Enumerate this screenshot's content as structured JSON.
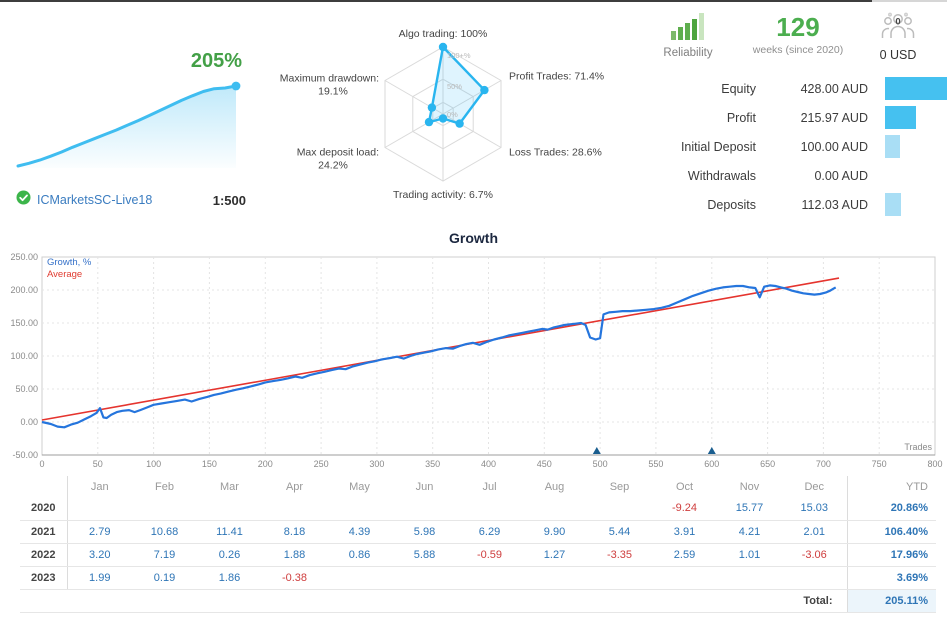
{
  "account": {
    "growth_percent": "205%",
    "broker": "ICMarketsSC-Live18",
    "leverage": "1:500"
  },
  "reliability": {
    "label": "Reliability",
    "weeks_value": "129",
    "weeks_caption": "weeks (since 2020)",
    "members_count": "0",
    "members_funds": "0 USD"
  },
  "stats": {
    "max": 428,
    "bar_colors": {
      "strong": "#45c1f0",
      "light": "#a9def5"
    },
    "rows": [
      {
        "label": "Equity",
        "value": "428.00 AUD",
        "amount": 428,
        "tone": "strong"
      },
      {
        "label": "Profit",
        "value": "215.97 AUD",
        "amount": 215.97,
        "tone": "strong"
      },
      {
        "label": "Initial Deposit",
        "value": "100.00 AUD",
        "amount": 100,
        "tone": "light"
      },
      {
        "label": "Withdrawals",
        "value": "0.00 AUD",
        "amount": 0,
        "tone": "light"
      },
      {
        "label": "Deposits",
        "value": "112.03 AUD",
        "amount": 112.03,
        "tone": "light"
      }
    ]
  },
  "chart_data": [
    {
      "name": "account-growth-sparkline",
      "type": "area",
      "max": 205,
      "final_label": "205%",
      "line_color": "#3fbdf0",
      "values": [
        0,
        7,
        15,
        25,
        36,
        48,
        59,
        70,
        81,
        92,
        104,
        116,
        129,
        142,
        155,
        168,
        180,
        191,
        198,
        200,
        205
      ]
    },
    {
      "name": "metrics-radar",
      "type": "radar",
      "categories": [
        "Algo trading",
        "Profit Trades",
        "Loss Trades",
        "Trading activity",
        "Max deposit load",
        "Maximum drawdown"
      ],
      "values": [
        100,
        71.4,
        28.6,
        6.7,
        24.2,
        19.1
      ],
      "label_lines": [
        [
          "Algo trading: 100%"
        ],
        [
          "Profit Trades: 71.4%"
        ],
        [
          "Loss Trades: 28.6%"
        ],
        [
          "Trading activity: 6.7%"
        ],
        [
          "Max deposit load:",
          "24.2%"
        ],
        [
          "Maximum drawdown:",
          "19.1%"
        ]
      ],
      "ring_labels": [
        "100+%",
        "50%",
        "0%"
      ],
      "stroke": "#29b5ef",
      "fill": "rgba(41,182,246,0.15)"
    },
    {
      "name": "growth-chart",
      "type": "line",
      "title": "Growth",
      "xlabel": "Trades",
      "xlim": [
        0,
        800
      ],
      "ylim": [
        -50,
        250
      ],
      "yticks": [
        "250.00",
        "200.00",
        "150.00",
        "100.00",
        "50.00",
        "0.00",
        "-50.00"
      ],
      "xticks": [
        0,
        50,
        100,
        150,
        200,
        250,
        300,
        350,
        400,
        450,
        500,
        550,
        600,
        650,
        700,
        750,
        800
      ],
      "deposit_markers": [
        497,
        600
      ],
      "series": [
        {
          "name": "Average",
          "color": "#e5342e",
          "width": 1.6,
          "points": [
            [
              0,
              3
            ],
            [
              714,
              218
            ]
          ]
        },
        {
          "name": "Growth, %",
          "color": "#2575dd",
          "width": 2.2,
          "points": [
            [
              0,
              0
            ],
            [
              8,
              -3
            ],
            [
              14,
              -7
            ],
            [
              20,
              -8
            ],
            [
              26,
              -4
            ],
            [
              32,
              -1
            ],
            [
              38,
              4
            ],
            [
              44,
              9
            ],
            [
              49,
              14
            ],
            [
              52,
              21
            ],
            [
              55,
              7
            ],
            [
              58,
              6
            ],
            [
              62,
              11
            ],
            [
              67,
              15
            ],
            [
              72,
              17
            ],
            [
              78,
              18
            ],
            [
              83,
              15
            ],
            [
              88,
              18
            ],
            [
              94,
              22
            ],
            [
              100,
              26
            ],
            [
              107,
              28
            ],
            [
              114,
              30
            ],
            [
              121,
              32
            ],
            [
              128,
              34
            ],
            [
              134,
              31
            ],
            [
              141,
              35
            ],
            [
              148,
              38
            ],
            [
              154,
              41
            ],
            [
              160,
              43
            ],
            [
              167,
              46
            ],
            [
              174,
              49
            ],
            [
              180,
              51
            ],
            [
              187,
              54
            ],
            [
              194,
              57
            ],
            [
              200,
              60
            ],
            [
              207,
              62
            ],
            [
              214,
              64
            ],
            [
              220,
              66
            ],
            [
              227,
              69
            ],
            [
              233,
              67
            ],
            [
              240,
              71
            ],
            [
              247,
              74
            ],
            [
              253,
              76
            ],
            [
              260,
              79
            ],
            [
              266,
              81
            ],
            [
              272,
              80
            ],
            [
              278,
              84
            ],
            [
              285,
              87
            ],
            [
              292,
              90
            ],
            [
              298,
              92
            ],
            [
              305,
              95
            ],
            [
              312,
              97
            ],
            [
              318,
              99
            ],
            [
              324,
              96
            ],
            [
              330,
              100
            ],
            [
              336,
              103
            ],
            [
              342,
              105
            ],
            [
              348,
              107
            ],
            [
              355,
              110
            ],
            [
              362,
              112
            ],
            [
              368,
              111
            ],
            [
              374,
              115
            ],
            [
              380,
              118
            ],
            [
              386,
              120
            ],
            [
              392,
              117
            ],
            [
              398,
              121
            ],
            [
              405,
              125
            ],
            [
              412,
              128
            ],
            [
              418,
              131
            ],
            [
              424,
              133
            ],
            [
              430,
              135
            ],
            [
              436,
              137
            ],
            [
              442,
              139
            ],
            [
              448,
              141
            ],
            [
              453,
              140
            ],
            [
              458,
              143
            ],
            [
              463,
              145
            ],
            [
              468,
              147
            ],
            [
              473,
              148
            ],
            [
              478,
              149
            ],
            [
              483,
              150
            ],
            [
              487,
              147
            ],
            [
              491,
              128
            ],
            [
              496,
              125
            ],
            [
              500,
              127
            ],
            [
              503,
              163
            ],
            [
              508,
              166
            ],
            [
              514,
              167
            ],
            [
              520,
              168
            ],
            [
              527,
              168
            ],
            [
              534,
              169
            ],
            [
              541,
              170
            ],
            [
              548,
              171
            ],
            [
              555,
              173
            ],
            [
              562,
              176
            ],
            [
              569,
              181
            ],
            [
              576,
              186
            ],
            [
              583,
              191
            ],
            [
              590,
              195
            ],
            [
              597,
              199
            ],
            [
              604,
              202
            ],
            [
              610,
              204
            ],
            [
              616,
              205
            ],
            [
              622,
              206
            ],
            [
              628,
              206
            ],
            [
              634,
              204
            ],
            [
              639,
              203
            ],
            [
              643,
              189
            ],
            [
              647,
              205
            ],
            [
              652,
              207
            ],
            [
              657,
              206
            ],
            [
              662,
              204
            ],
            [
              667,
              202
            ],
            [
              672,
              199
            ],
            [
              677,
              197
            ],
            [
              682,
              195
            ],
            [
              687,
              194
            ],
            [
              692,
              193
            ],
            [
              697,
              194
            ],
            [
              702,
              196
            ],
            [
              706,
              199
            ],
            [
              709,
              202
            ],
            [
              711,
              204
            ]
          ]
        }
      ]
    }
  ],
  "monthly_table": {
    "months": [
      "Jan",
      "Feb",
      "Mar",
      "Apr",
      "May",
      "Jun",
      "Jul",
      "Aug",
      "Sep",
      "Oct",
      "Nov",
      "Dec"
    ],
    "ytd_header": "YTD",
    "rows": [
      {
        "year": "2020",
        "values": [
          "",
          "",
          "",
          "",
          "",
          "",
          "",
          "",
          "",
          "-9.24",
          "15.77",
          "15.03"
        ],
        "ytd": "20.86%"
      },
      {
        "year": "2021",
        "values": [
          "2.79",
          "10.68",
          "11.41",
          "8.18",
          "4.39",
          "5.98",
          "6.29",
          "9.90",
          "5.44",
          "3.91",
          "4.21",
          "2.01"
        ],
        "ytd": "106.40%"
      },
      {
        "year": "2022",
        "values": [
          "3.20",
          "7.19",
          "0.26",
          "1.88",
          "0.86",
          "5.88",
          "-0.59",
          "1.27",
          "-3.35",
          "2.59",
          "1.01",
          "-3.06"
        ],
        "ytd": "17.96%"
      },
      {
        "year": "2023",
        "values": [
          "1.99",
          "0.19",
          "1.86",
          "-0.38",
          "",
          "",
          "",
          "",
          "",
          "",
          "",
          ""
        ],
        "ytd": "3.69%"
      }
    ],
    "total_label": "Total:",
    "total_value": "205.11%"
  }
}
